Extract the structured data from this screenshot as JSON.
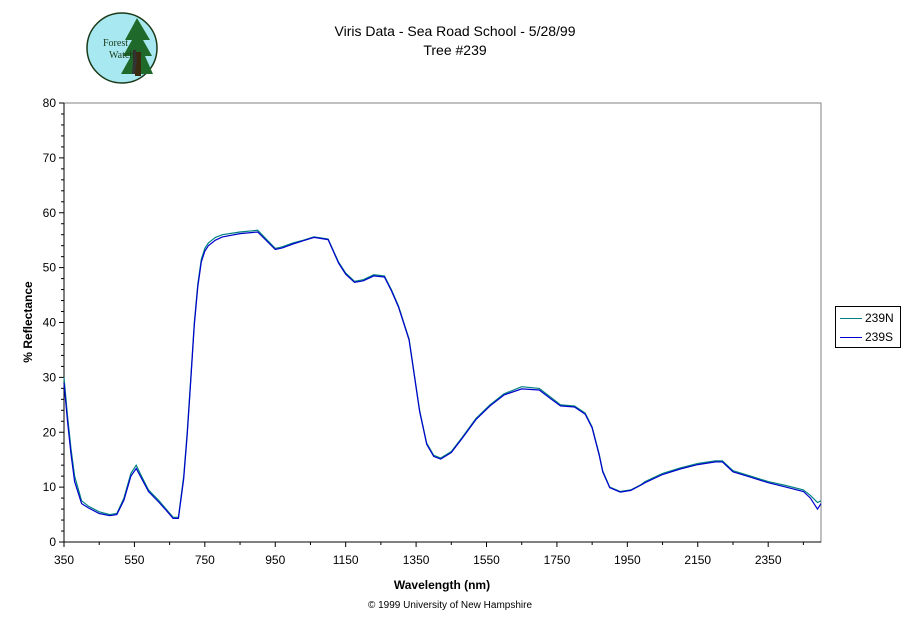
{
  "logo": {
    "line1": "Forest",
    "line2": "Watch"
  },
  "chart_data": {
    "type": "line",
    "title": "Viris Data - Sea Road School - 5/28/99",
    "subtitle": "Tree #239",
    "xlabel": "Wavelength (nm)",
    "ylabel": "% Reflectance",
    "xlim": [
      350,
      2500
    ],
    "ylim": [
      0,
      80
    ],
    "x_ticks": [
      350,
      550,
      750,
      950,
      1150,
      1350,
      1550,
      1750,
      1950,
      2150,
      2350
    ],
    "y_ticks": [
      0,
      10,
      20,
      30,
      40,
      50,
      60,
      70,
      80
    ],
    "grid": false,
    "legend_position": "right",
    "colors": {
      "239N": "#008080",
      "239S": "#0000cc"
    },
    "series": [
      {
        "name": "239N",
        "x": [
          350,
          360,
          370,
          380,
          400,
          420,
          450,
          480,
          500,
          520,
          540,
          555,
          570,
          590,
          620,
          640,
          660,
          675,
          690,
          700,
          710,
          720,
          730,
          740,
          750,
          760,
          780,
          800,
          850,
          900,
          950,
          970,
          1000,
          1030,
          1060,
          1100,
          1130,
          1150,
          1175,
          1200,
          1230,
          1260,
          1280,
          1300,
          1330,
          1360,
          1380,
          1400,
          1420,
          1450,
          1480,
          1520,
          1560,
          1600,
          1650,
          1700,
          1730,
          1760,
          1800,
          1830,
          1850,
          1870,
          1880,
          1900,
          1930,
          1960,
          1990,
          2000,
          2050,
          2100,
          2150,
          2200,
          2220,
          2250,
          2300,
          2350,
          2400,
          2450,
          2470,
          2490,
          2500
        ],
        "y": [
          30,
          23,
          17,
          12,
          7.5,
          6.5,
          5.5,
          5,
          5.2,
          8,
          12.5,
          14,
          12,
          9.5,
          7.5,
          6,
          4.5,
          4.5,
          12,
          20,
          30,
          40,
          47,
          51.5,
          53.5,
          54.5,
          55.5,
          56,
          56.5,
          56.8,
          53.5,
          53.8,
          54.5,
          55,
          55.6,
          55.2,
          51,
          49,
          47.5,
          47.8,
          48.7,
          48.5,
          46,
          43,
          37,
          24,
          18,
          15.8,
          15.3,
          16.5,
          19,
          22.5,
          25,
          27,
          28.3,
          28,
          26.5,
          25,
          24.8,
          23.5,
          21,
          16,
          13,
          10,
          9.2,
          9.5,
          10.5,
          11,
          12.5,
          13.5,
          14.3,
          14.8,
          14.8,
          13,
          12,
          11,
          10.3,
          9.5,
          8.5,
          7.2,
          7.5
        ]
      },
      {
        "name": "239S",
        "x": [
          350,
          360,
          370,
          380,
          400,
          420,
          450,
          480,
          500,
          520,
          540,
          555,
          570,
          590,
          620,
          640,
          660,
          675,
          690,
          700,
          710,
          720,
          730,
          740,
          750,
          760,
          780,
          800,
          850,
          900,
          950,
          970,
          1000,
          1030,
          1060,
          1100,
          1130,
          1150,
          1175,
          1200,
          1230,
          1260,
          1280,
          1300,
          1330,
          1360,
          1380,
          1400,
          1420,
          1450,
          1480,
          1520,
          1560,
          1600,
          1650,
          1700,
          1730,
          1760,
          1800,
          1830,
          1850,
          1870,
          1880,
          1900,
          1930,
          1960,
          1990,
          2000,
          2050,
          2100,
          2150,
          2200,
          2220,
          2250,
          2300,
          2350,
          2400,
          2450,
          2470,
          2490,
          2500
        ],
        "y": [
          29,
          22,
          16,
          11,
          7,
          6.2,
          5.2,
          4.8,
          5,
          7.6,
          12,
          13.4,
          11.6,
          9.2,
          7.2,
          5.8,
          4.3,
          4.3,
          11.5,
          19.5,
          29.5,
          39.5,
          46.5,
          51,
          53,
          54,
          55,
          55.6,
          56.2,
          56.5,
          53.3,
          53.6,
          54.3,
          54.9,
          55.5,
          55.1,
          50.8,
          48.8,
          47.3,
          47.6,
          48.5,
          48.3,
          45.8,
          42.8,
          36.8,
          23.8,
          17.8,
          15.6,
          15.1,
          16.3,
          18.8,
          22.3,
          24.8,
          26.8,
          27.9,
          27.7,
          26.2,
          24.8,
          24.6,
          23.3,
          20.8,
          15.8,
          12.8,
          9.9,
          9.1,
          9.4,
          10.4,
          10.8,
          12.3,
          13.3,
          14.1,
          14.6,
          14.6,
          12.8,
          11.8,
          10.8,
          10,
          9.2,
          8,
          6,
          7
        ]
      }
    ]
  },
  "footer": {
    "copyright": "© 1999 University of New Hampshire"
  }
}
